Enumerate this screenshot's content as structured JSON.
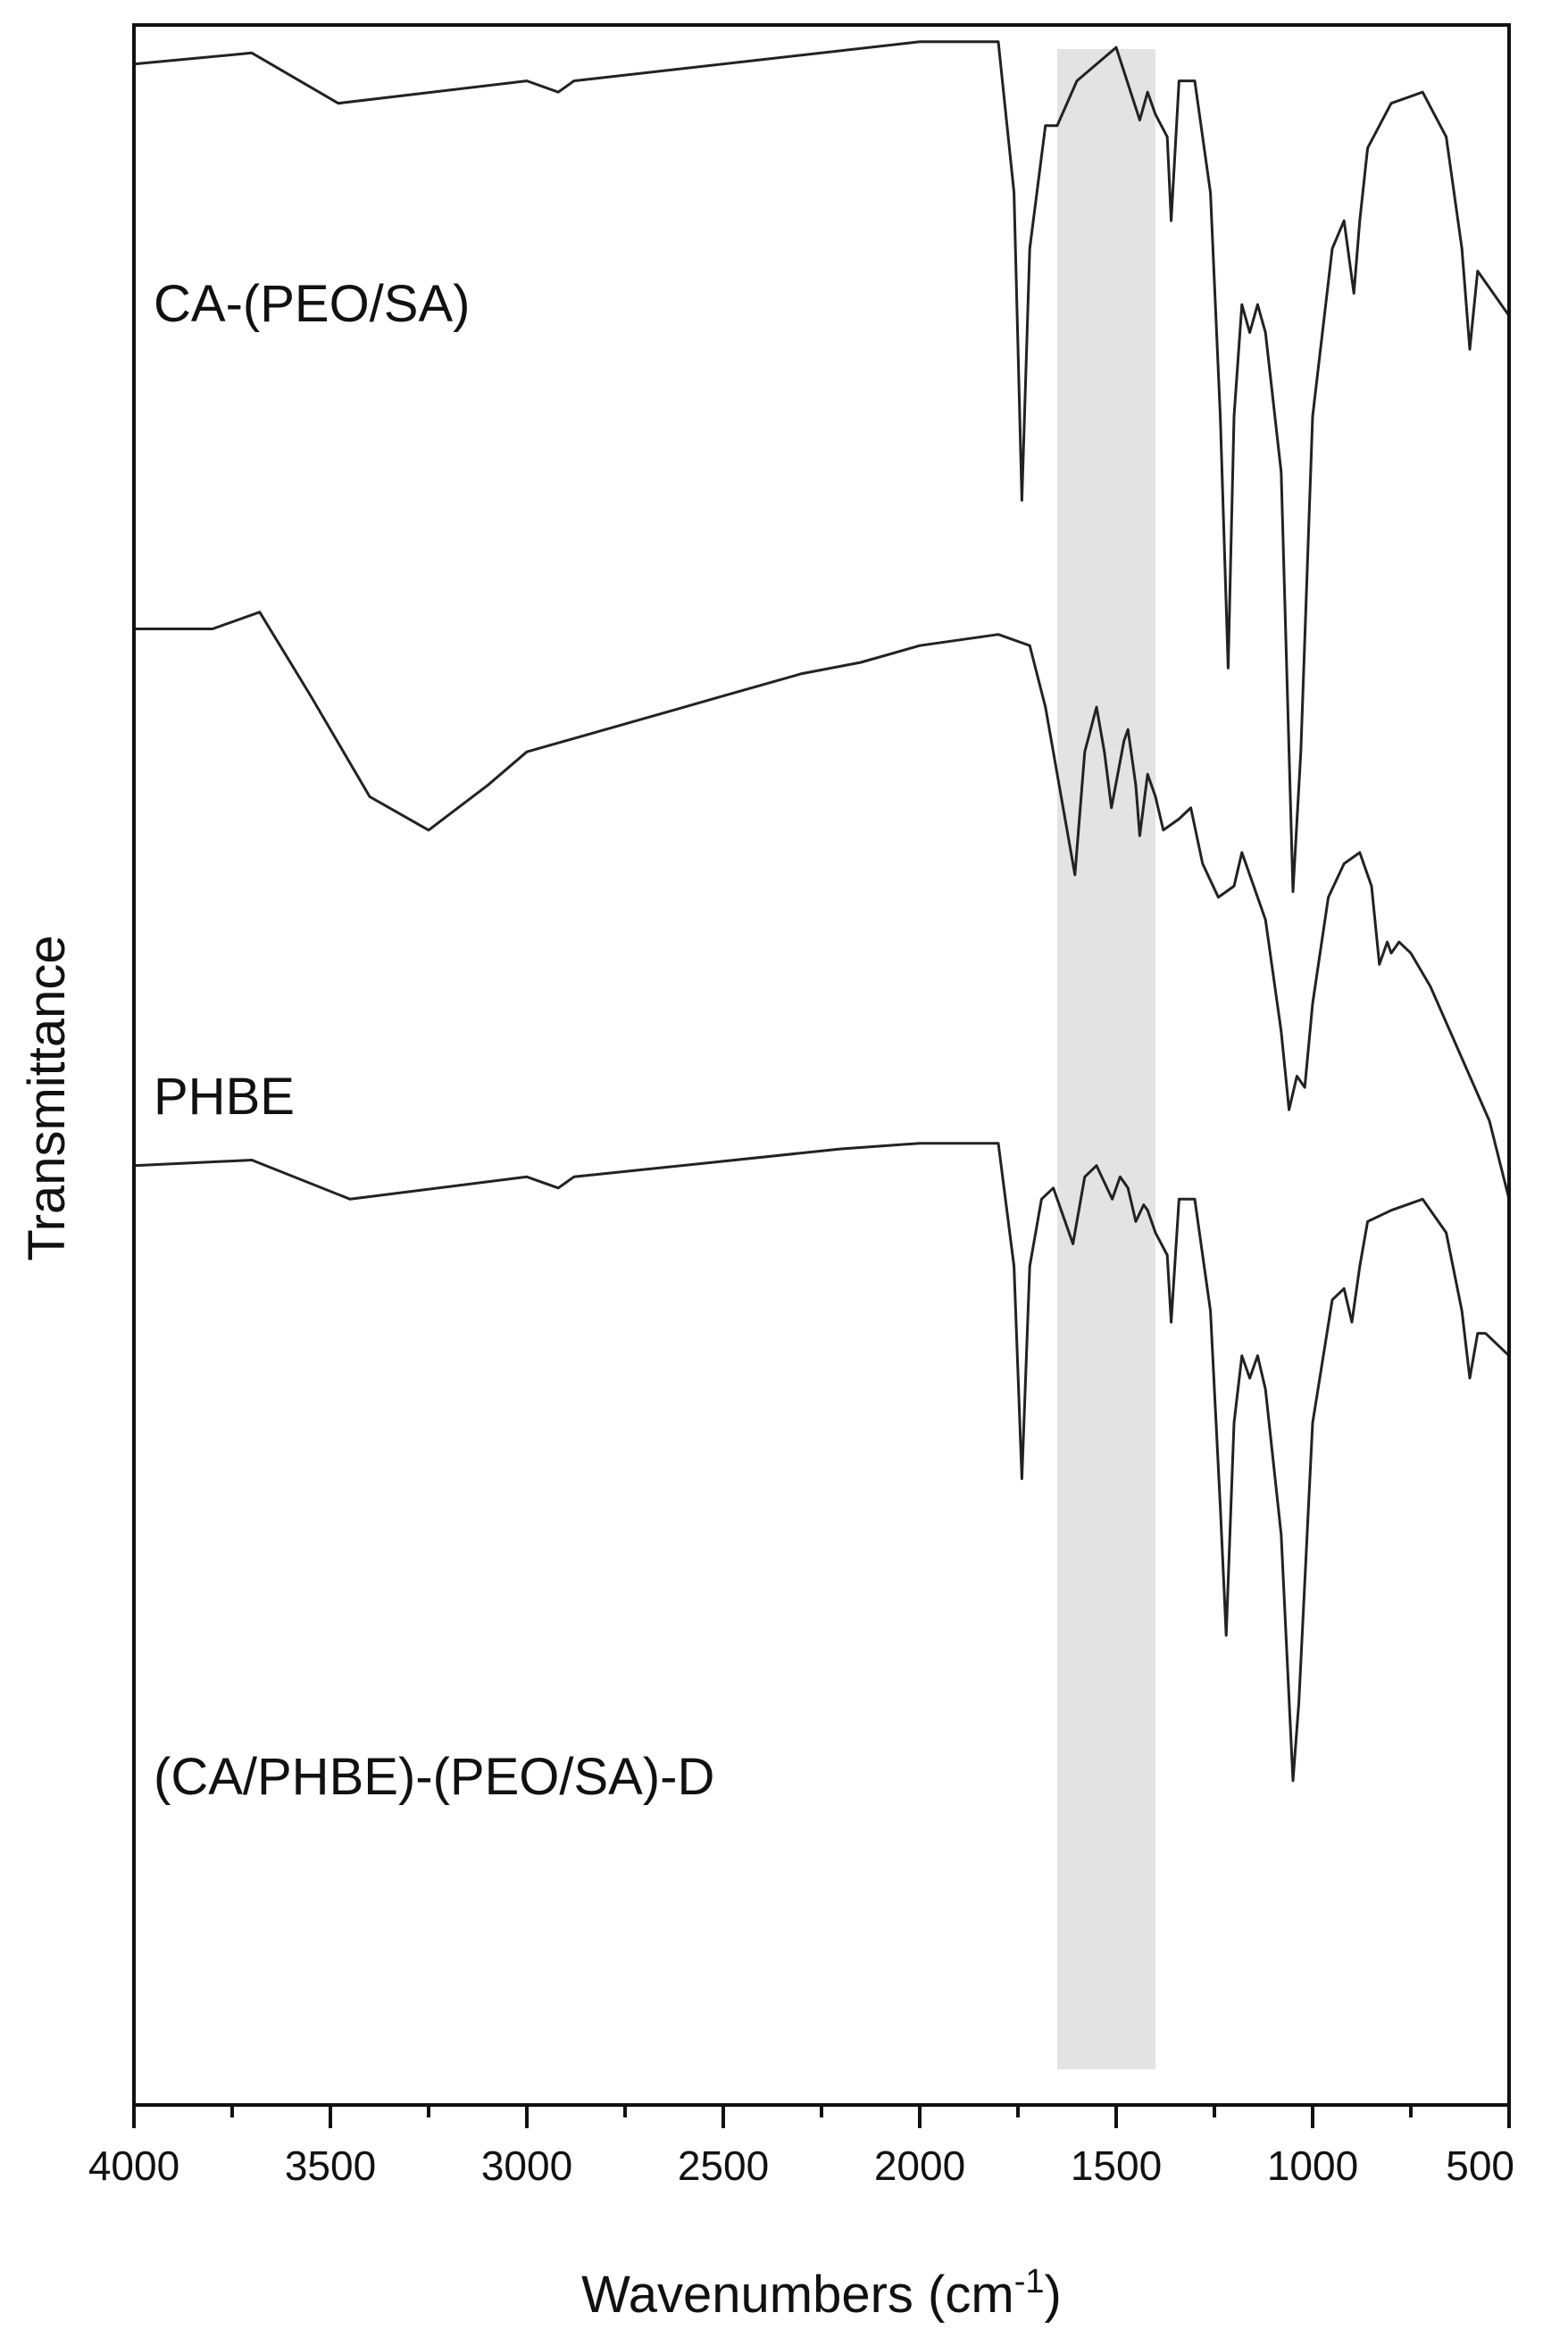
{
  "chart_data": {
    "type": "line",
    "xlabel": "Wavenumbers (cm",
    "xlabel_superscript": "-1",
    "xlabel_suffix": ")",
    "ylabel": "Transmittance",
    "xlim": [
      4000,
      500
    ],
    "x_reversed": true,
    "y_ticks_shown": false,
    "x_ticks": [
      4000,
      3500,
      3000,
      2500,
      2000,
      1500,
      1000,
      500
    ],
    "highlight_band": {
      "x_from": 1650,
      "x_to": 1400,
      "color": "#e3e3e3"
    },
    "series": [
      {
        "name": "CA-(PEO/SA)",
        "offset": 2.0,
        "x": [
          4000,
          3700,
          3480,
          3000,
          2920,
          2880,
          2000,
          1800,
          1760,
          1740,
          1720,
          1680,
          1650,
          1600,
          1500,
          1440,
          1420,
          1400,
          1370,
          1360,
          1340,
          1300,
          1260,
          1235,
          1215,
          1200,
          1180,
          1160,
          1140,
          1120,
          1080,
          1050,
          1030,
          1000,
          950,
          920,
          895,
          880,
          860,
          800,
          720,
          660,
          620,
          600,
          580,
          560,
          500
        ],
        "y": [
          0.93,
          0.95,
          0.86,
          0.9,
          0.88,
          0.9,
          0.97,
          0.97,
          0.7,
          0.15,
          0.6,
          0.82,
          0.82,
          0.9,
          0.96,
          0.83,
          0.88,
          0.84,
          0.8,
          0.65,
          0.9,
          0.9,
          0.7,
          0.3,
          -0.15,
          0.3,
          0.5,
          0.45,
          0.5,
          0.45,
          0.2,
          -0.55,
          -0.3,
          0.3,
          0.6,
          0.65,
          0.52,
          0.65,
          0.78,
          0.86,
          0.88,
          0.8,
          0.6,
          0.42,
          0.56,
          0.54,
          0.48
        ]
      },
      {
        "name": "PHBE",
        "offset": 1.0,
        "x": [
          4000,
          3800,
          3680,
          3550,
          3400,
          3250,
          3100,
          3000,
          2900,
          2700,
          2500,
          2300,
          2150,
          2000,
          1800,
          1720,
          1680,
          1640,
          1605,
          1580,
          1550,
          1530,
          1512,
          1480,
          1470,
          1450,
          1440,
          1420,
          1400,
          1380,
          1340,
          1310,
          1280,
          1240,
          1200,
          1180,
          1160,
          1120,
          1080,
          1060,
          1040,
          1020,
          1000,
          960,
          920,
          880,
          850,
          830,
          810,
          800,
          780,
          750,
          700,
          650,
          600,
          550,
          500
        ],
        "y": [
          0.92,
          0.92,
          0.95,
          0.8,
          0.62,
          0.56,
          0.64,
          0.7,
          0.72,
          0.76,
          0.8,
          0.84,
          0.86,
          0.89,
          0.91,
          0.89,
          0.78,
          0.62,
          0.48,
          0.7,
          0.78,
          0.7,
          0.6,
          0.72,
          0.74,
          0.64,
          0.55,
          0.66,
          0.62,
          0.56,
          0.58,
          0.6,
          0.5,
          0.44,
          0.46,
          0.52,
          0.48,
          0.4,
          0.2,
          0.06,
          0.12,
          0.1,
          0.25,
          0.44,
          0.5,
          0.52,
          0.46,
          0.32,
          0.36,
          0.34,
          0.36,
          0.34,
          0.28,
          0.2,
          0.12,
          0.04,
          -0.1
        ]
      },
      {
        "name": "(CA/PHBE)-(PEO/SA)-D",
        "offset": 0.0,
        "x": [
          4000,
          3700,
          3450,
          3000,
          2920,
          2880,
          2200,
          2000,
          1800,
          1760,
          1740,
          1720,
          1690,
          1660,
          1640,
          1610,
          1580,
          1550,
          1530,
          1510,
          1490,
          1470,
          1450,
          1430,
          1420,
          1400,
          1370,
          1360,
          1340,
          1300,
          1260,
          1235,
          1220,
          1200,
          1180,
          1160,
          1140,
          1120,
          1080,
          1050,
          1035,
          1000,
          950,
          920,
          900,
          880,
          860,
          800,
          720,
          660,
          620,
          600,
          580,
          560,
          500
        ],
        "y": [
          0.96,
          0.97,
          0.9,
          0.94,
          0.92,
          0.94,
          0.99,
          1.0,
          1.0,
          0.78,
          0.4,
          0.78,
          0.9,
          0.92,
          0.88,
          0.82,
          0.94,
          0.96,
          0.93,
          0.9,
          0.94,
          0.92,
          0.86,
          0.89,
          0.88,
          0.84,
          0.8,
          0.68,
          0.9,
          0.9,
          0.7,
          0.35,
          0.12,
          0.5,
          0.62,
          0.58,
          0.62,
          0.56,
          0.3,
          -0.14,
          0.0,
          0.5,
          0.72,
          0.74,
          0.68,
          0.78,
          0.86,
          0.88,
          0.9,
          0.84,
          0.7,
          0.58,
          0.66,
          0.66,
          0.62
        ]
      }
    ]
  }
}
